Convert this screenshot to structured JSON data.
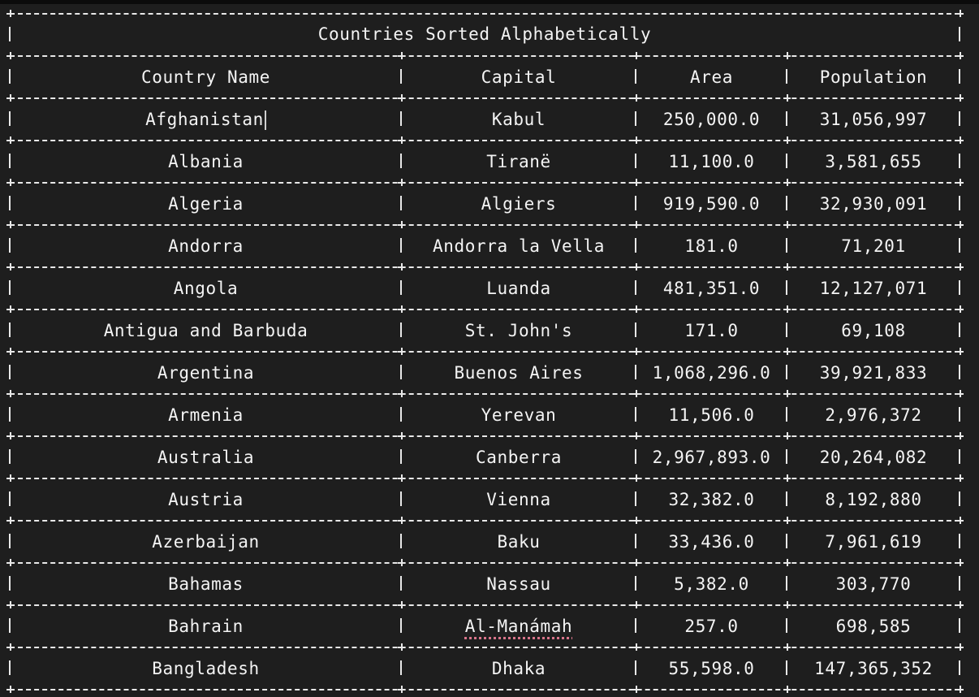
{
  "table": {
    "title": "Countries Sorted Alphabetically",
    "headers": [
      "Country Name",
      "Capital",
      "Area",
      "Population"
    ],
    "rows": [
      [
        "Afghanistan",
        "Kabul",
        "250,000.0",
        "31,056,997"
      ],
      [
        "Albania",
        "Tiranë",
        "11,100.0",
        "3,581,655"
      ],
      [
        "Algeria",
        "Algiers",
        "919,590.0",
        "32,930,091"
      ],
      [
        "Andorra",
        "Andorra la Vella",
        "181.0",
        "71,201"
      ],
      [
        "Angola",
        "Luanda",
        "481,351.0",
        "12,127,071"
      ],
      [
        "Antigua and Barbuda",
        "St. John's",
        "171.0",
        "69,108"
      ],
      [
        "Argentina",
        "Buenos Aires",
        "1,068,296.0",
        "39,921,833"
      ],
      [
        "Armenia",
        "Yerevan",
        "11,506.0",
        "2,976,372"
      ],
      [
        "Australia",
        "Canberra",
        "2,967,893.0",
        "20,264,082"
      ],
      [
        "Austria",
        "Vienna",
        "32,382.0",
        "8,192,880"
      ],
      [
        "Azerbaijan",
        "Baku",
        "33,436.0",
        "7,961,619"
      ],
      [
        "Bahamas",
        "Nassau",
        "5,382.0",
        "303,770"
      ],
      [
        "Bahrain",
        "Al-Manámah",
        "257.0",
        "698,585"
      ],
      [
        "Bangladesh",
        "Dhaka",
        "55,598.0",
        "147,365,352"
      ]
    ]
  },
  "colors": {
    "background": "#1e1e1e",
    "text": "#f4f4f4",
    "border": "#e8e8e8",
    "spellcheck": "#d9748a"
  }
}
